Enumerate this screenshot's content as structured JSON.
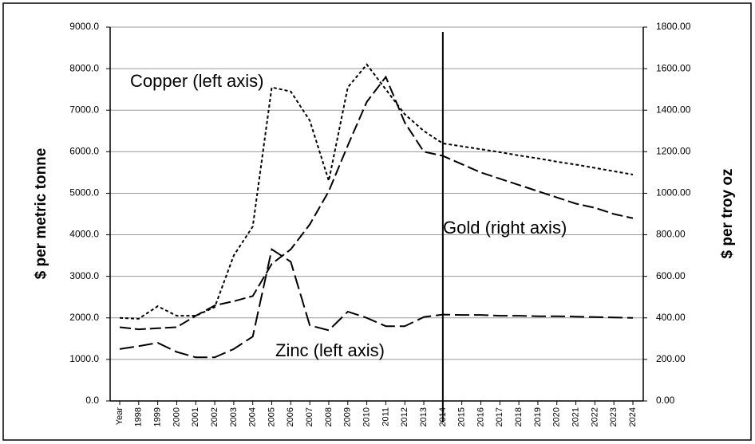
{
  "chart_data": {
    "type": "line",
    "y_label": "$ per metric tonne",
    "y2_label": "$ per troy oz",
    "categories": [
      "Year",
      "1998",
      "1999",
      "2000",
      "2001",
      "2002",
      "2003",
      "2004",
      "2005",
      "2006",
      "2007",
      "2008",
      "2009",
      "2010",
      "2011",
      "2012",
      "2013",
      "2014",
      "2015",
      "2016",
      "2017",
      "2018",
      "2019",
      "2020",
      "2021",
      "2022",
      "2023",
      "2024"
    ],
    "vline": "2014",
    "grid": true,
    "ylim": [
      0,
      9000
    ],
    "yticks": [
      {
        "value": 0,
        "label": "0.0"
      },
      {
        "value": 1000,
        "label": "1000.0"
      },
      {
        "value": 2000,
        "label": "2000.0"
      },
      {
        "value": 3000,
        "label": "3000.0"
      },
      {
        "value": 4000,
        "label": "4000.0"
      },
      {
        "value": 5000,
        "label": "5000.0"
      },
      {
        "value": 6000,
        "label": "6000.0"
      },
      {
        "value": 7000,
        "label": "7000.0"
      },
      {
        "value": 8000,
        "label": "8000.0"
      },
      {
        "value": 9000,
        "label": "9000.0"
      }
    ],
    "y2lim": [
      0,
      1800
    ],
    "y2ticks": [
      {
        "value": 0,
        "label": "0.00"
      },
      {
        "value": 200,
        "label": "200.00"
      },
      {
        "value": 400,
        "label": "400.00"
      },
      {
        "value": 600,
        "label": "600.00"
      },
      {
        "value": 800,
        "label": "800.00"
      },
      {
        "value": 1000,
        "label": "1000.00"
      },
      {
        "value": 1200,
        "label": "1200.00"
      },
      {
        "value": 1400,
        "label": "1400.00"
      },
      {
        "value": 1600,
        "label": "1600.00"
      },
      {
        "value": 1800,
        "label": "1800.00"
      }
    ],
    "series": [
      {
        "name": "Copper (left axis)",
        "color": "#000000",
        "dash": "4,3",
        "axis": "y",
        "values": [
          2000,
          1980,
          2280,
          2050,
          2050,
          2260,
          3500,
          4200,
          7550,
          7450,
          6750,
          5300,
          7550,
          8100,
          7500,
          6900,
          6500,
          6200,
          6130,
          6060,
          5990,
          5910,
          5840,
          5760,
          5690,
          5610,
          5530,
          5450
        ]
      },
      {
        "name": "Gold (right axis)",
        "color": "#000000",
        "dash": "14,5",
        "axis": "y2",
        "values": [
          355,
          345,
          350,
          355,
          410,
          460,
          480,
          505,
          660,
          730,
          850,
          1010,
          1230,
          1440,
          1560,
          1340,
          1200,
          1180,
          1140,
          1100,
          1070,
          1040,
          1010,
          980,
          950,
          930,
          900,
          880
        ]
      },
      {
        "name": "Zinc (left axis)",
        "color": "#000000",
        "dash": "18,6",
        "axis": "y",
        "values": [
          1250,
          1320,
          1400,
          1180,
          1050,
          1050,
          1250,
          1550,
          3650,
          3350,
          1820,
          1700,
          2150,
          2000,
          1800,
          1800,
          2020,
          2080,
          2070,
          2070,
          2050,
          2050,
          2040,
          2040,
          2030,
          2020,
          2010,
          2000
        ]
      }
    ]
  }
}
